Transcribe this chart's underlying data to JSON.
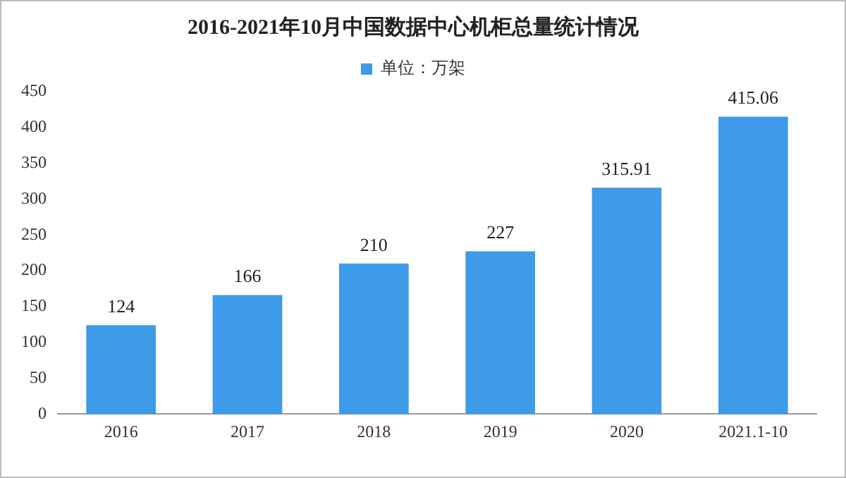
{
  "chart_data": {
    "type": "bar",
    "title": "2016-2021年10月中国数据中心机柜总量统计情况",
    "categories": [
      "2016",
      "2017",
      "2018",
      "2019",
      "2020",
      "2021.1-10"
    ],
    "series": [
      {
        "name": "单位：万架",
        "color": "#3d9be9",
        "values": [
          124,
          166,
          210,
          227,
          315.91,
          415.06
        ]
      }
    ],
    "ylim": [
      0,
      450
    ],
    "yticks": [
      0,
      50,
      100,
      150,
      200,
      250,
      300,
      350,
      400,
      450
    ],
    "data_labels": true,
    "legend": "top",
    "grid": false
  }
}
